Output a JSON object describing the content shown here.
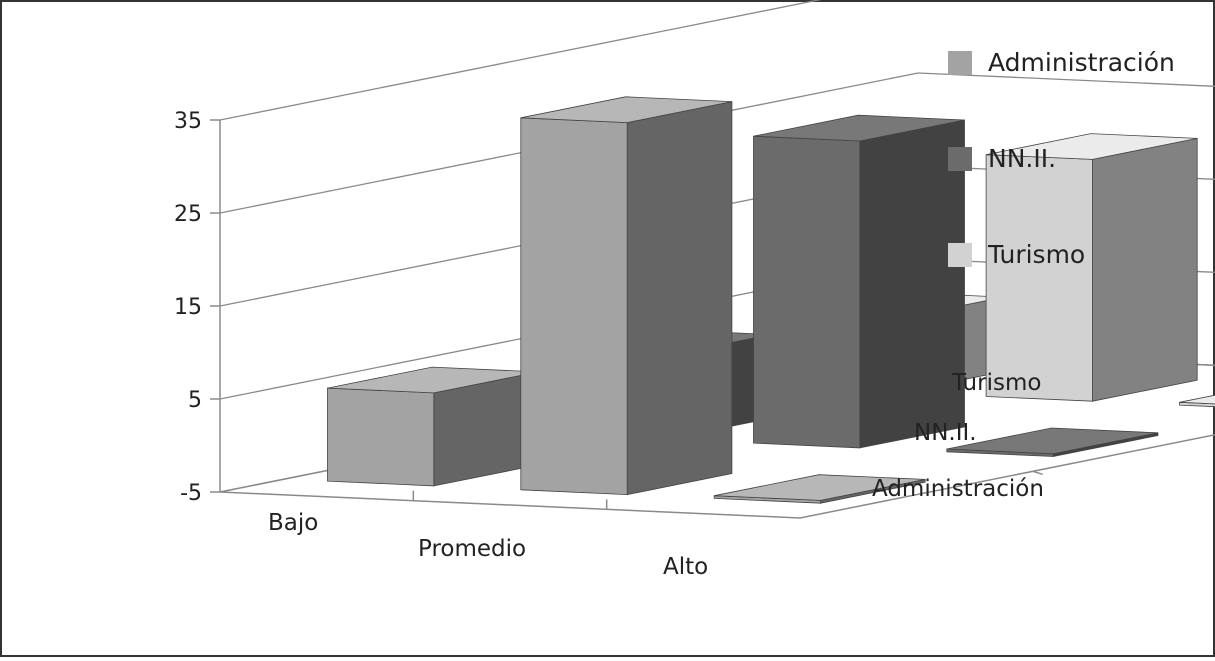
{
  "chart_data": {
    "type": "bar",
    "categories": [
      "Bajo",
      "Promedio",
      "Alto"
    ],
    "series": [
      {
        "name": "Administración",
        "values": [
          5,
          35,
          -5
        ]
      },
      {
        "name": "NN.II.",
        "values": [
          4,
          28,
          -5
        ]
      },
      {
        "name": "Turismo",
        "values": [
          3,
          21,
          -5
        ]
      }
    ],
    "depth_labels": [
      "Turismo",
      "NN.II.",
      "Administración"
    ],
    "yticks": [
      "35",
      "25",
      "15",
      "5",
      "-5"
    ],
    "ylim": [
      -5,
      35
    ],
    "legend": "right",
    "grid": true,
    "colors": {
      "Administración": "#a3a3a3",
      "NN.II.": "#6b6b6b",
      "Turismo": "#d2d2d2"
    }
  }
}
